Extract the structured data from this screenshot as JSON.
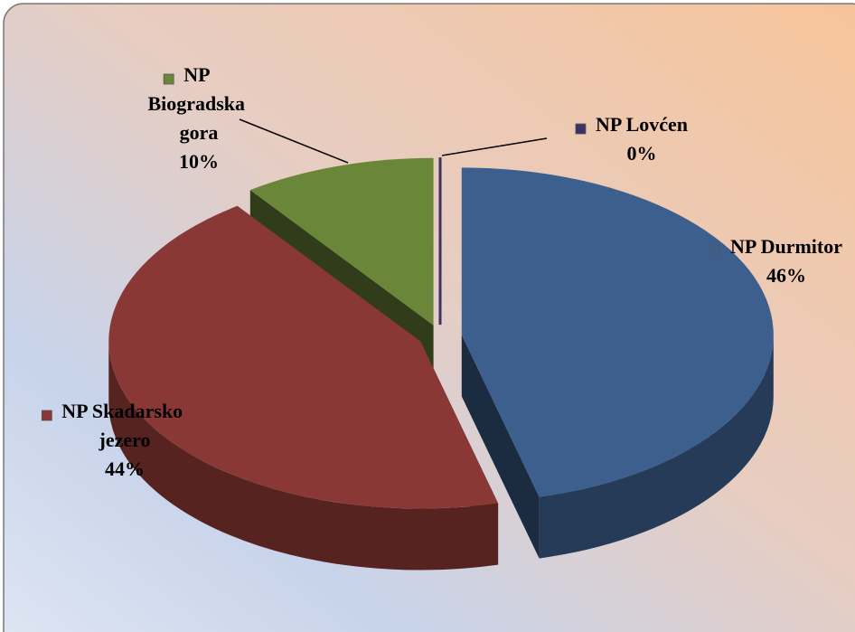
{
  "chart_data": {
    "type": "pie",
    "categories": [
      "NP Durmitor",
      "NP Skadarsko jezero",
      "NP Biogradska gora",
      "NP Lovćen"
    ],
    "values": [
      46,
      44,
      10,
      0
    ],
    "value_labels": [
      "46%",
      "44%",
      "10%",
      "0%"
    ],
    "colors": [
      "#3c5f8e",
      "#8a3835",
      "#6a8639",
      "#3c3164"
    ],
    "legend": true
  }
}
